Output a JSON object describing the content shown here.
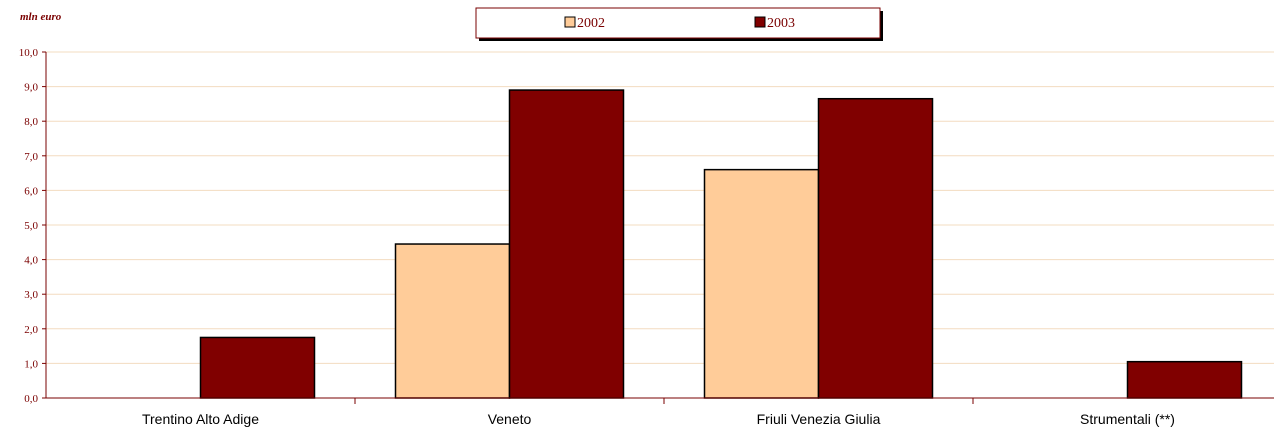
{
  "chart_data": {
    "type": "bar",
    "unit_label": "mln euro",
    "categories": [
      "Trentino Alto Adige",
      "Veneto",
      "Friuli Venezia Giulia",
      "Strumentali (**)"
    ],
    "series": [
      {
        "name": "2002",
        "color": "#ffcc99",
        "values": [
          0,
          4.45,
          6.6,
          0
        ]
      },
      {
        "name": "2003",
        "color": "#800000",
        "values": [
          1.75,
          8.9,
          8.65,
          1.05
        ]
      }
    ],
    "ylim": [
      0,
      10
    ],
    "yticks": [
      "0,0",
      "1,0",
      "2,0",
      "3,0",
      "4,0",
      "5,0",
      "6,0",
      "7,0",
      "8,0",
      "9,0",
      "10,0"
    ],
    "grid": true,
    "grid_color": "#f3dcc0",
    "axis_color": "#7a0000",
    "legend_position": "top-center"
  }
}
